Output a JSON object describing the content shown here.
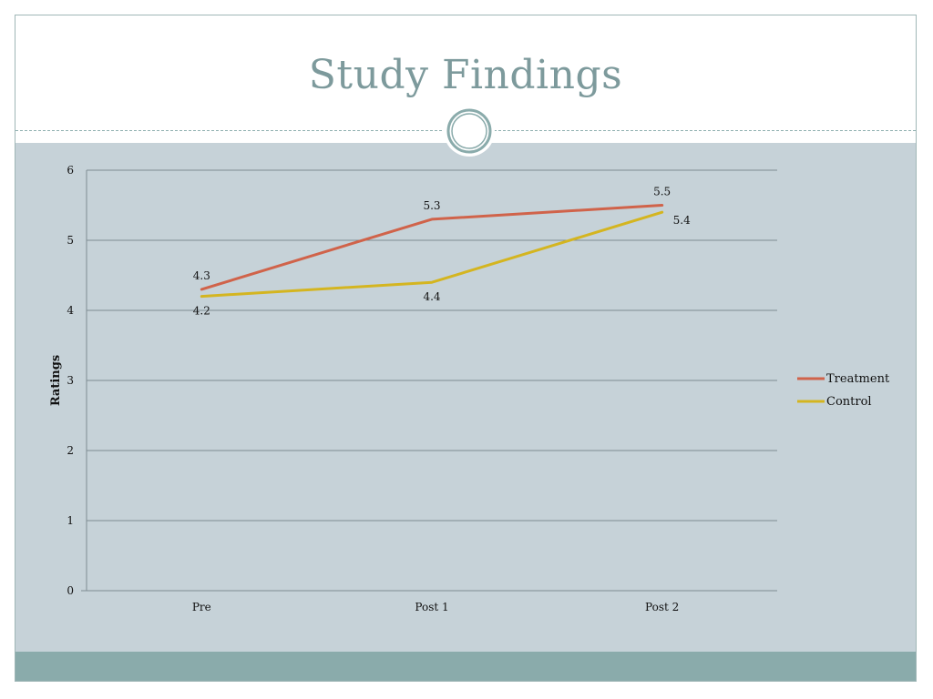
{
  "slide": {
    "title": "Study Findings"
  },
  "colors": {
    "title": "#7d9a9c",
    "content_bg": "#c6d2d8",
    "footer_band": "#8aabab",
    "gridline": "#7f8c92",
    "treatment": "#d0634a",
    "control": "#d4b520"
  },
  "chart_data": {
    "type": "line",
    "categories": [
      "Pre",
      "Post 1",
      "Post 2"
    ],
    "series": [
      {
        "name": "Treatment",
        "values": [
          4.3,
          5.3,
          5.5
        ],
        "labels": [
          "4.3",
          "5.3",
          "5.5"
        ],
        "label_position": "above"
      },
      {
        "name": "Control",
        "values": [
          4.2,
          4.4,
          5.4
        ],
        "labels": [
          "4.2",
          "4.4",
          "5.4"
        ],
        "label_position": "below"
      }
    ],
    "yticks": [
      "0",
      "1",
      "2",
      "3",
      "4",
      "5",
      "6"
    ],
    "ylim": [
      0,
      6
    ],
    "ylabel": "Ratings",
    "xlabel": "",
    "grid": true,
    "legend_position": "right"
  }
}
